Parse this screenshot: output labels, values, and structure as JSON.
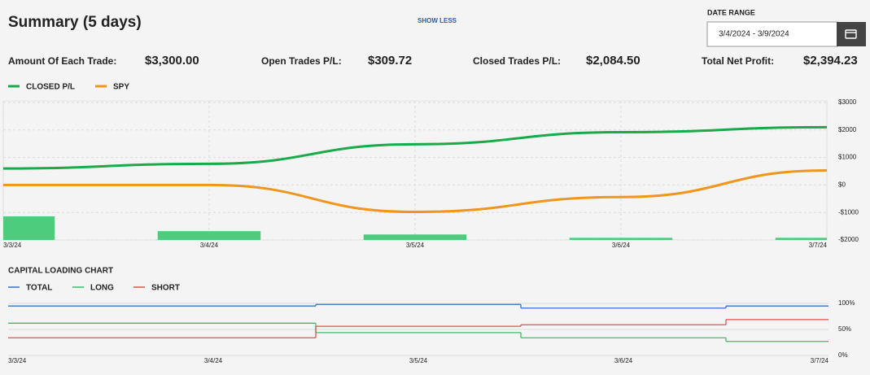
{
  "header": {
    "title": "Summary (5 days)",
    "toggle": "SHOW LESS",
    "date_range_label": "DATE RANGE",
    "date_range": "3/4/2024 - 3/9/2024"
  },
  "stats": [
    {
      "label": "Amount Of Each Trade:",
      "value": "$3,300.00"
    },
    {
      "label": "Open Trades P/L:",
      "value": "$309.72"
    },
    {
      "label": "Closed Trades P/L:",
      "value": "$2,084.50"
    },
    {
      "label": "Total Net Profit:",
      "value": "$2,394.23"
    }
  ],
  "chart_data": [
    {
      "type": "line",
      "categories": [
        "3/3/24",
        "3/4/24",
        "3/5/24",
        "3/6/24",
        "3/7/24"
      ],
      "series": [
        {
          "name": "CLOSED P/L",
          "color": "#1aaa4a",
          "values": [
            600,
            770,
            1480,
            1920,
            2100
          ]
        },
        {
          "name": "SPY",
          "color": "#f0961c",
          "values": [
            0,
            0,
            -980,
            -440,
            530
          ]
        }
      ],
      "bars": {
        "color": "#4ccc7c",
        "values": [
          -1140,
          -1680,
          -1800,
          -1920,
          -1920
        ]
      },
      "ylim": [
        -2000,
        3000
      ],
      "yticks": [
        {
          "value": 3000,
          "label": "$3000"
        },
        {
          "value": 2000,
          "label": "$2000"
        },
        {
          "value": 1000,
          "label": "$1000"
        },
        {
          "value": 0,
          "label": "$0"
        },
        {
          "value": -1000,
          "label": "-$1000"
        },
        {
          "value": -2000,
          "label": "-$2000"
        }
      ],
      "grid": true
    },
    {
      "type": "step",
      "title": "CAPITAL LOADING CHART",
      "categories": [
        "3/3/24",
        "3/4/24",
        "3/5/24",
        "3/6/24",
        "3/7/24"
      ],
      "series": [
        {
          "name": "TOTAL",
          "color": "#3a6fc4",
          "values": [
            95,
            95,
            98,
            91,
            95
          ]
        },
        {
          "name": "LONG",
          "color": "#3fba6a",
          "values": [
            62,
            62,
            44,
            34,
            27
          ]
        },
        {
          "name": "SHORT",
          "color": "#e0504d",
          "values": [
            34,
            34,
            56,
            59,
            69
          ]
        }
      ],
      "ylim": [
        0,
        100
      ],
      "yticks": [
        {
          "value": 100,
          "label": "100%"
        },
        {
          "value": 50,
          "label": "50%"
        },
        {
          "value": 0,
          "label": "0%"
        }
      ],
      "grid": true
    }
  ]
}
